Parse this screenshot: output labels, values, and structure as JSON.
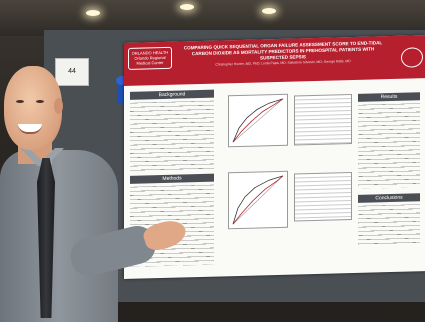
{
  "scene": "researcher presenting a poster at a conference",
  "card_number": "44",
  "poster": {
    "logo_text": "ORLANDO HEALTH\nOrlando Regional Medical Center",
    "title": "COMPARING QUICK SEQUENTIAL ORGAN FAILURE ASSESSMENT SCORE TO END-TIDAL CARBON DIOXIDE AS MORTALITY PREDICTORS IN PREHOSPITAL PATIENTS WITH SUSPECTED SEPSIS",
    "authors": "Christopher Hunter, MD, PhD; Linda Papa, MD; Salvatore Silvestri, MD; George Ralls, MD",
    "sections": {
      "background": "Background",
      "methods": "Methods",
      "results": "Results",
      "conclusions": "Conclusions"
    }
  },
  "colors": {
    "poster_header": "#b61f2d",
    "section_bar": "#4b4f55",
    "ribbon": "#1e4fb8"
  }
}
